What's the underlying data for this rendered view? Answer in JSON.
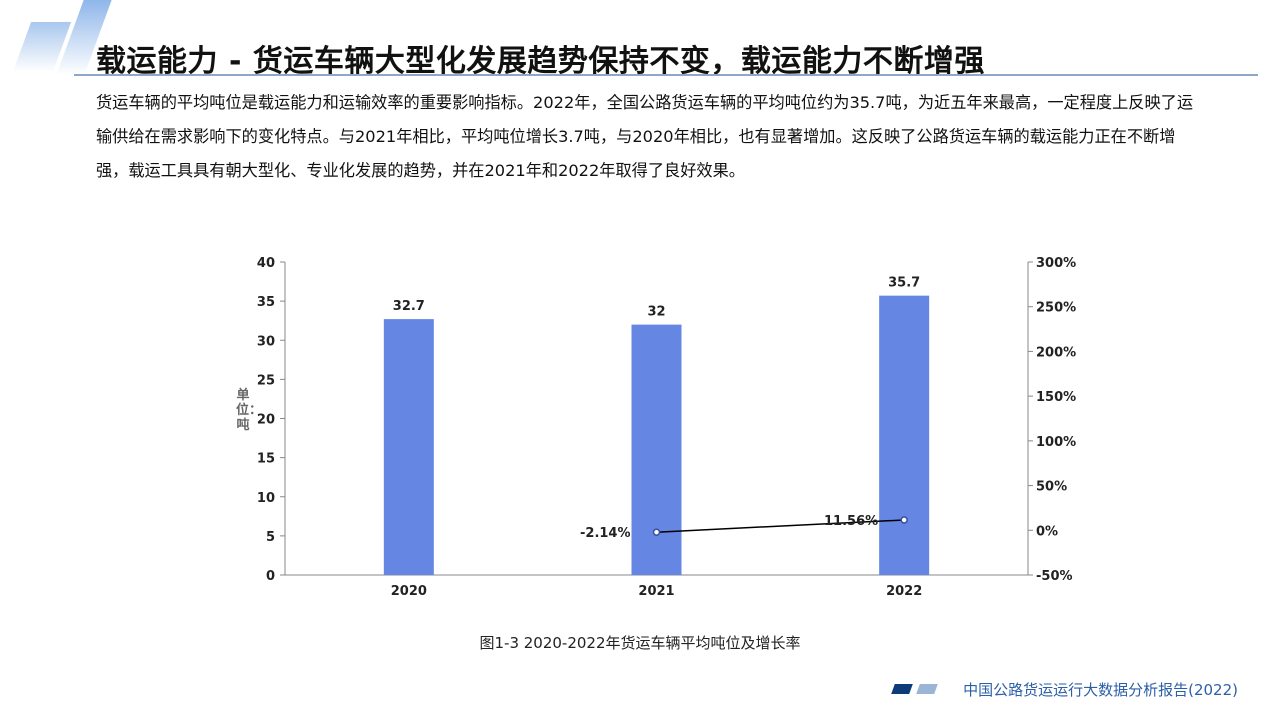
{
  "header": {
    "title": "载运能力 - 货运车辆大型化发展趋势保持不变，载运能力不断增强"
  },
  "body_text": "货运车辆的平均吨位是载运能力和运输效率的重要影响指标。2022年，全国公路货运车辆的平均吨位约为35.7吨，为近五年来最高，一定程度上反映了运输供给在需求影响下的变化特点。与2021年相比，平均吨位增长3.7吨，与2020年相比，也有显著增加。这反映了公路货运车辆的载运能力正在不断增强，载运工具具有朝大型化、专业化发展的趋势，并在2021年和2022年取得了良好效果。",
  "chart_data": {
    "type": "bar+line",
    "categories": [
      "2020",
      "2021",
      "2022"
    ],
    "series": [
      {
        "type": "bar",
        "axis": "left",
        "values": [
          32.7,
          32,
          35.7
        ],
        "labels": [
          "32.7",
          "32",
          "35.7"
        ],
        "color": "#6686e3"
      },
      {
        "type": "line",
        "axis": "right",
        "x": [
          "2021",
          "2022"
        ],
        "values": [
          -2.14,
          11.56
        ],
        "labels": [
          "-2.14%",
          "11.56%"
        ],
        "color": "#000000"
      }
    ],
    "ylabel": "单位：吨",
    "ylim": [
      0,
      40
    ],
    "yticks": [
      "0",
      "5",
      "10",
      "15",
      "20",
      "25",
      "30",
      "35",
      "40"
    ],
    "y2lim": [
      -50,
      300
    ],
    "y2ticks": [
      "-50%",
      "0%",
      "50%",
      "100%",
      "150%",
      "200%",
      "250%",
      "300%"
    ],
    "grid": false,
    "caption": "图1-3 2020-2022年货运车辆平均吨位及增长率"
  },
  "footer": {
    "report": "中国公路货运运行大数据分析报告(2022)"
  }
}
